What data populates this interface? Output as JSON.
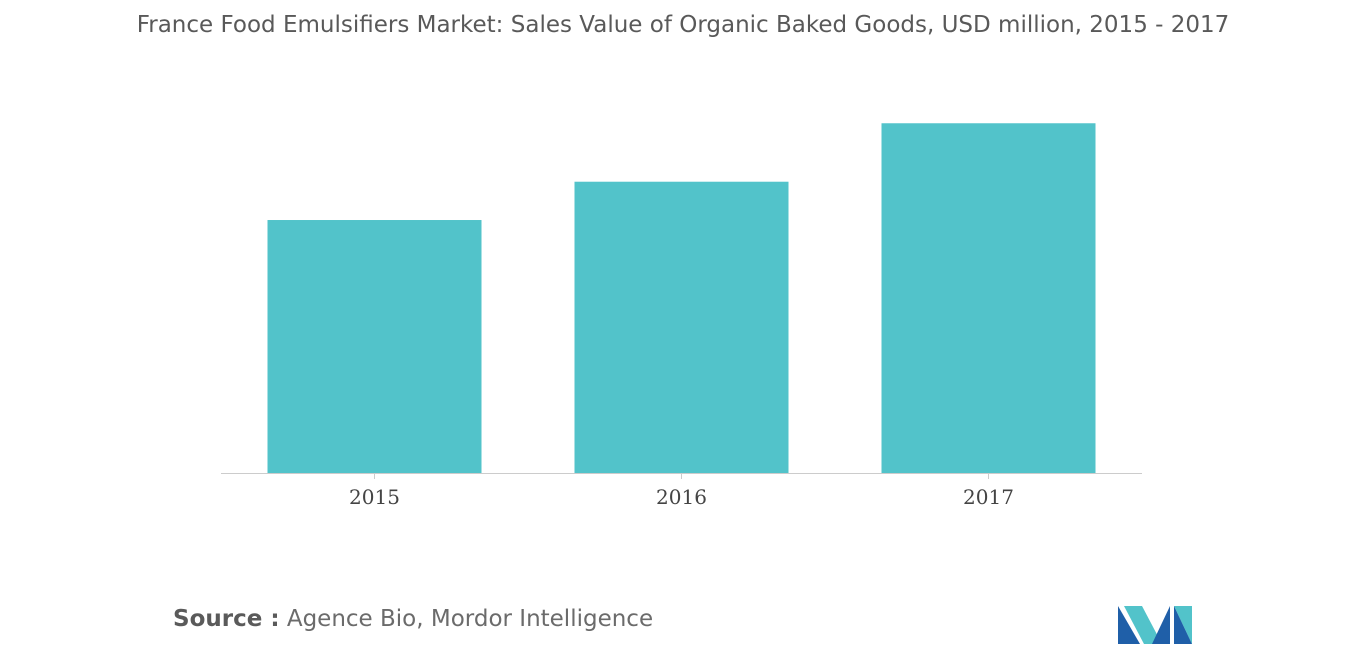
{
  "chart_data": {
    "type": "bar",
    "title": "France Food Emulsifiers Market: Sales Value of Organic Baked Goods, USD million, 2015 - 2017",
    "categories": [
      "2015",
      "2016",
      "2017"
    ],
    "values": [
      251,
      289,
      347
    ],
    "ylim": [
      0,
      380
    ],
    "xlabel": "",
    "ylabel": "",
    "grid": false,
    "legend": "none",
    "bar_color": "#52c3ca"
  },
  "source": {
    "label": "Source :",
    "text": "Agence Bio, Mordor Intelligence"
  },
  "logo": {
    "icon": "mordor-intelligence-logo",
    "colors": [
      "#1f5fa8",
      "#52c3ca"
    ]
  }
}
